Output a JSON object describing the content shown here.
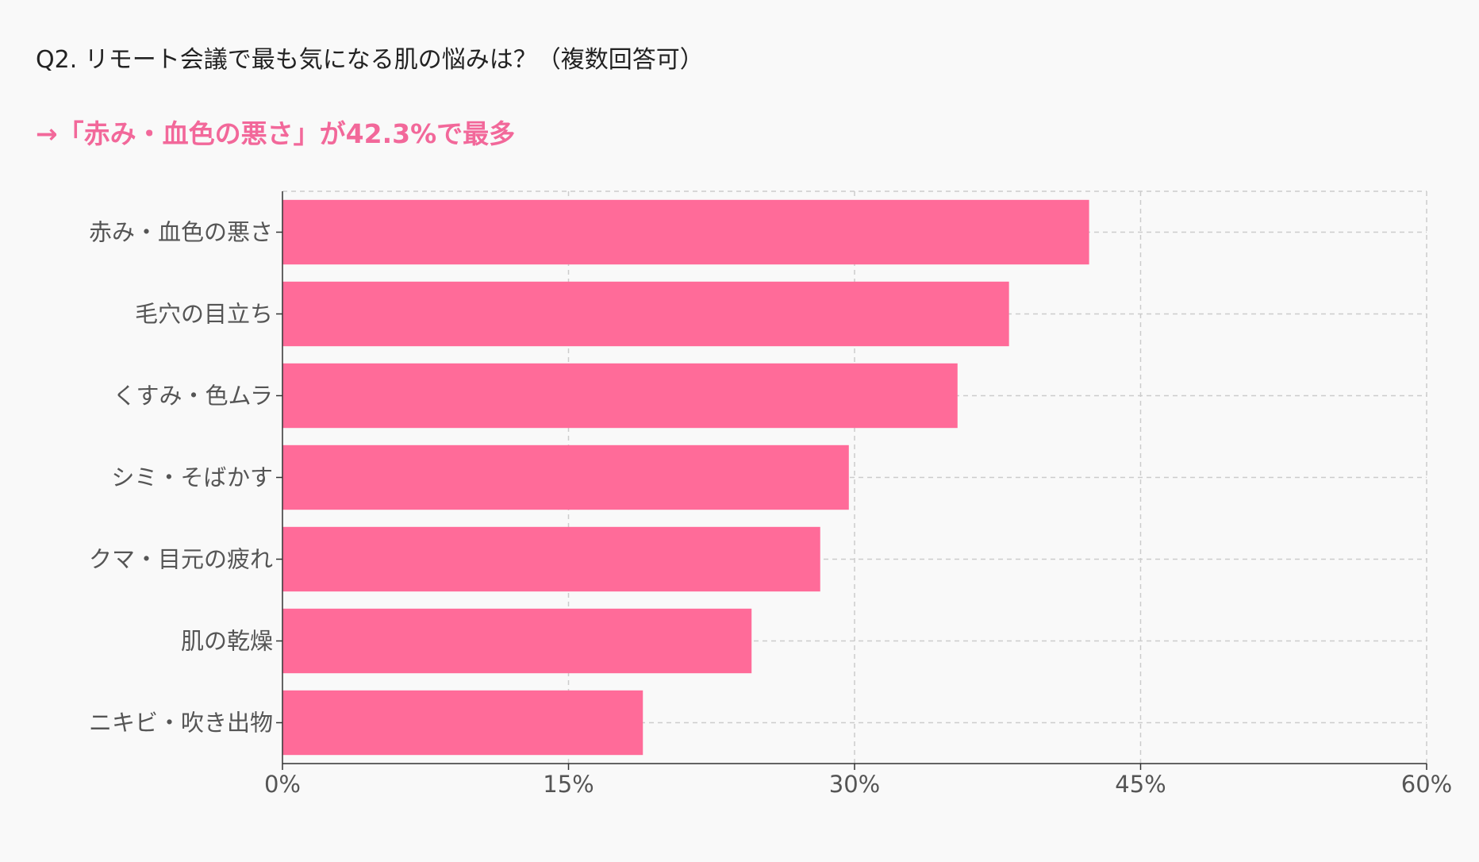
{
  "header": {
    "question": "Q2. リモート会議で最も気になる肌の悩みは？（複数回答可）",
    "highlight": "→「赤み・血色の悪さ」が42.3%で最多",
    "highlight_color": "#f2689a"
  },
  "chart_data": {
    "type": "bar",
    "orientation": "horizontal",
    "categories": [
      "赤み・血色の悪さ",
      "毛穴の目立ち",
      "くすみ・色ムラ",
      "シミ・そばかす",
      "クマ・目元の疲れ",
      "肌の乾燥",
      "ニキビ・吹き出物"
    ],
    "values": [
      42.3,
      38.1,
      35.4,
      29.7,
      28.2,
      24.6,
      18.9
    ],
    "unit": "%",
    "xlim": [
      0,
      60
    ],
    "xticks": [
      0,
      15,
      30,
      45,
      60
    ],
    "xtick_labels": [
      "0%",
      "15%",
      "30%",
      "45%",
      "60%"
    ],
    "grid": true,
    "bar_color": "#ff6b99"
  }
}
